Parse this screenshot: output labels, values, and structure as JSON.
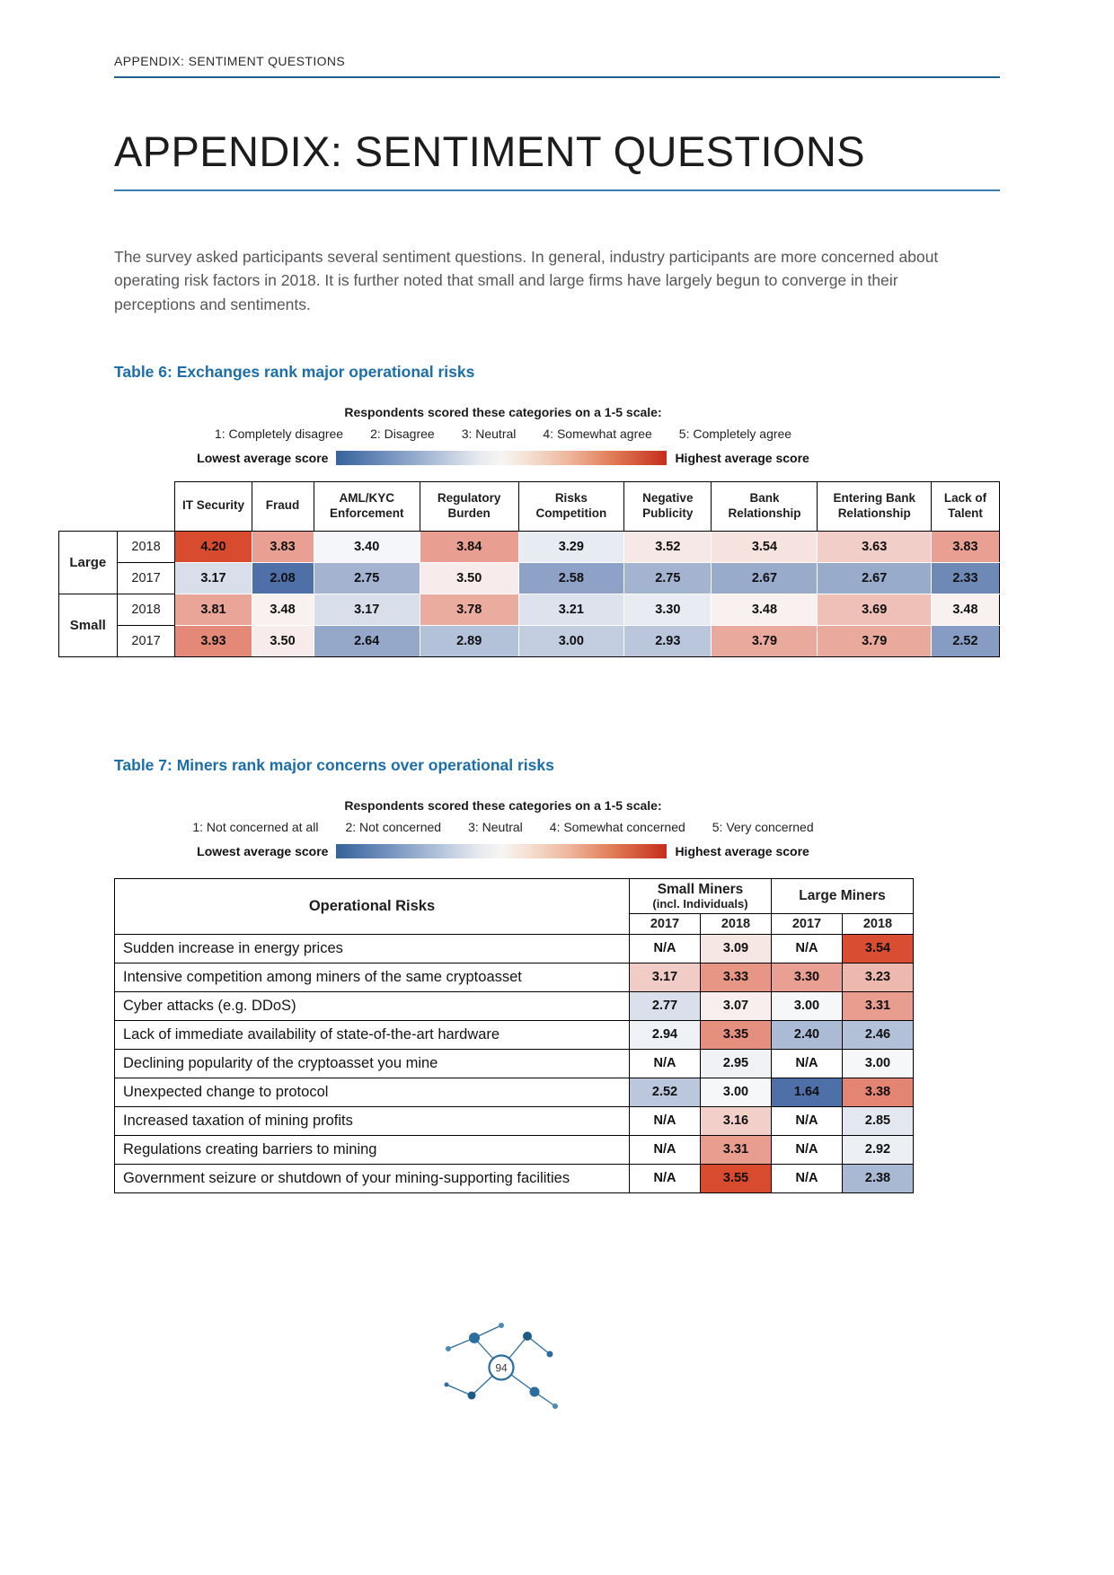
{
  "page": {
    "running_header": "APPENDIX: SENTIMENT QUESTIONS",
    "title": "APPENDIX: SENTIMENT QUESTIONS",
    "intro": "The survey asked participants several sentiment questions. In general, industry participants are more concerned about operating risk factors in 2018. It is further noted that small and large firms have largely begun to converge in their perceptions and sentiments.",
    "page_number": "94"
  },
  "colors": {
    "accent_blue": "#1c6ea9",
    "heat_low": "#4e6fa7",
    "heat_mid": "#fafafb",
    "heat_high": "#d84b2f"
  },
  "table6": {
    "caption": "Table 6: Exchanges rank major operational risks",
    "scale_title": "Respondents scored these categories on a 1-5 scale:",
    "scale_items": [
      "1: Completely disagree",
      "2: Disagree",
      "3: Neutral",
      "4: Somewhat agree",
      "5: Completely agree"
    ],
    "scale_low_label": "Lowest average score",
    "scale_high_label": "Highest average score",
    "columns": [
      "IT Security",
      "Fraud",
      "AML/KYC Enforcement",
      "Regulatory Burden",
      "Risks Competition",
      "Negative Publicity",
      "Bank Relationship",
      "Entering Bank Relationship",
      "Lack of Talent"
    ],
    "row_groups": [
      {
        "label": "Large",
        "rows": [
          {
            "year": "2018",
            "values": [
              "4.20",
              "3.83",
              "3.40",
              "3.84",
              "3.29",
              "3.52",
              "3.54",
              "3.63",
              "3.83"
            ]
          },
          {
            "year": "2017",
            "values": [
              "3.17",
              "2.08",
              "2.75",
              "3.50",
              "2.58",
              "2.75",
              "2.67",
              "2.67",
              "2.33"
            ]
          }
        ]
      },
      {
        "label": "Small",
        "rows": [
          {
            "year": "2018",
            "values": [
              "3.81",
              "3.48",
              "3.17",
              "3.78",
              "3.21",
              "3.30",
              "3.48",
              "3.69",
              "3.48"
            ]
          },
          {
            "year": "2017",
            "values": [
              "3.93",
              "3.50",
              "2.64",
              "2.89",
              "3.00",
              "2.93",
              "3.79",
              "3.79",
              "2.52"
            ]
          }
        ]
      }
    ]
  },
  "table7": {
    "caption": "Table 7: Miners rank major concerns over operational risks",
    "scale_title": "Respondents scored these categories on a 1-5 scale:",
    "scale_items": [
      "1: Not concerned at all",
      "2: Not concerned",
      "3: Neutral",
      "4: Somewhat concerned",
      "5: Very concerned"
    ],
    "scale_low_label": "Lowest average score",
    "scale_high_label": "Highest average score",
    "col_label": "Operational Risks",
    "groups": [
      {
        "label": "Small Miners",
        "sub": "(incl. Individuals)"
      },
      {
        "label": "Large Miners",
        "sub": ""
      }
    ],
    "year_cols": [
      "2017",
      "2018",
      "2017",
      "2018"
    ],
    "rows": [
      {
        "label": "Sudden increase in energy prices",
        "values": [
          "N/A",
          "3.09",
          "N/A",
          "3.54"
        ]
      },
      {
        "label": "Intensive competition among miners of the same cryptoasset",
        "values": [
          "3.17",
          "3.33",
          "3.30",
          "3.23"
        ]
      },
      {
        "label": "Cyber attacks (e.g. DDoS)",
        "values": [
          "2.77",
          "3.07",
          "3.00",
          "3.31"
        ]
      },
      {
        "label": "Lack of immediate availability of state-of-the-art hardware",
        "values": [
          "2.94",
          "3.35",
          "2.40",
          "2.46"
        ]
      },
      {
        "label": "Declining popularity of the cryptoasset you mine",
        "values": [
          "N/A",
          "2.95",
          "N/A",
          "3.00"
        ]
      },
      {
        "label": "Unexpected change to protocol",
        "values": [
          "2.52",
          "3.00",
          "1.64",
          "3.38"
        ]
      },
      {
        "label": "Increased taxation of mining profits",
        "values": [
          "N/A",
          "3.16",
          "N/A",
          "2.85"
        ]
      },
      {
        "label": "Regulations creating barriers to mining",
        "values": [
          "N/A",
          "3.31",
          "N/A",
          "2.92"
        ]
      },
      {
        "label": "Government seizure or shutdown of your mining-supporting facilities",
        "values": [
          "N/A",
          "3.55",
          "N/A",
          "2.38"
        ]
      }
    ]
  }
}
